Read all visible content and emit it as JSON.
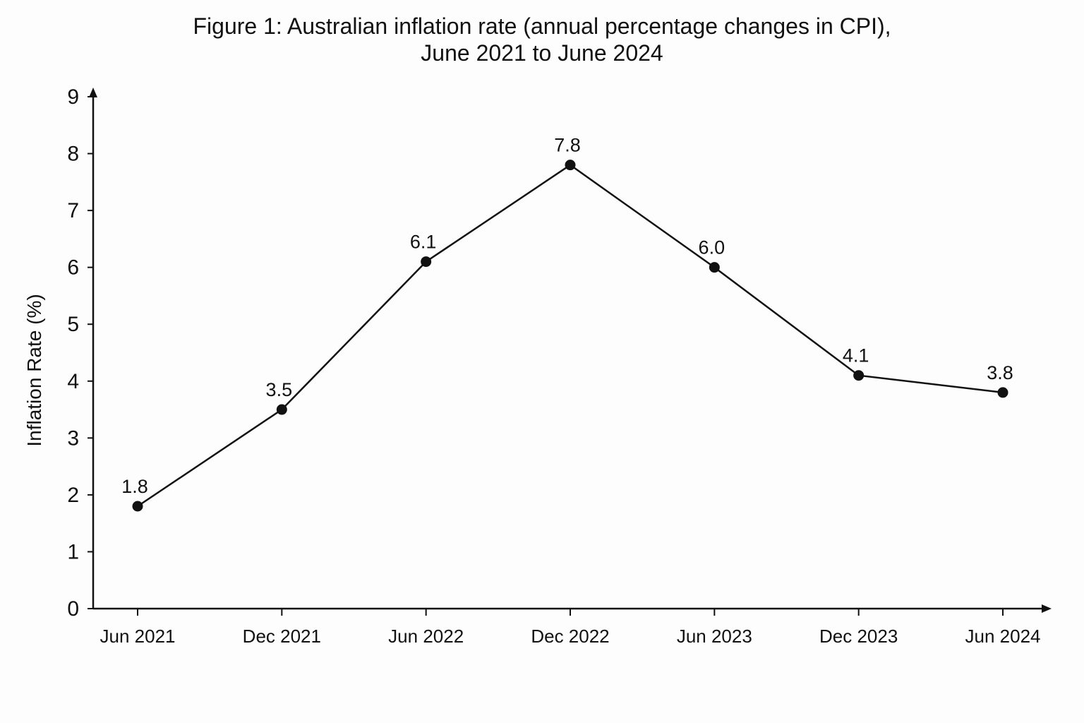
{
  "title_lines": [
    "Figure 1: Australian inflation rate (annual percentage changes in CPI),",
    "June 2021 to June 2024"
  ],
  "colors": {
    "line": "#111111",
    "marker": "#111111",
    "text": "#111111",
    "background": "#fdfdfd"
  },
  "chart_data": {
    "type": "line",
    "title": "Figure 1: Australian inflation rate (annual percentage changes in CPI), June 2021 to June 2024",
    "xlabel": "",
    "ylabel": "Inflation Rate (%)",
    "categories": [
      "Jun 2021",
      "Dec 2021",
      "Jun 2022",
      "Dec 2022",
      "Jun 2023",
      "Dec 2023",
      "Jun 2024"
    ],
    "series": [
      {
        "values": [
          1.8,
          3.5,
          6.1,
          7.8,
          6.0,
          4.1,
          3.8
        ],
        "labels": [
          "1.8",
          "3.5",
          "6.1",
          "7.8",
          "6.0",
          "4.1",
          "3.8"
        ]
      }
    ],
    "ylim": [
      0,
      9
    ],
    "yticks": [
      0,
      1,
      2,
      3,
      4,
      5,
      6,
      7,
      8,
      9
    ],
    "grid": false,
    "legend": "none"
  }
}
